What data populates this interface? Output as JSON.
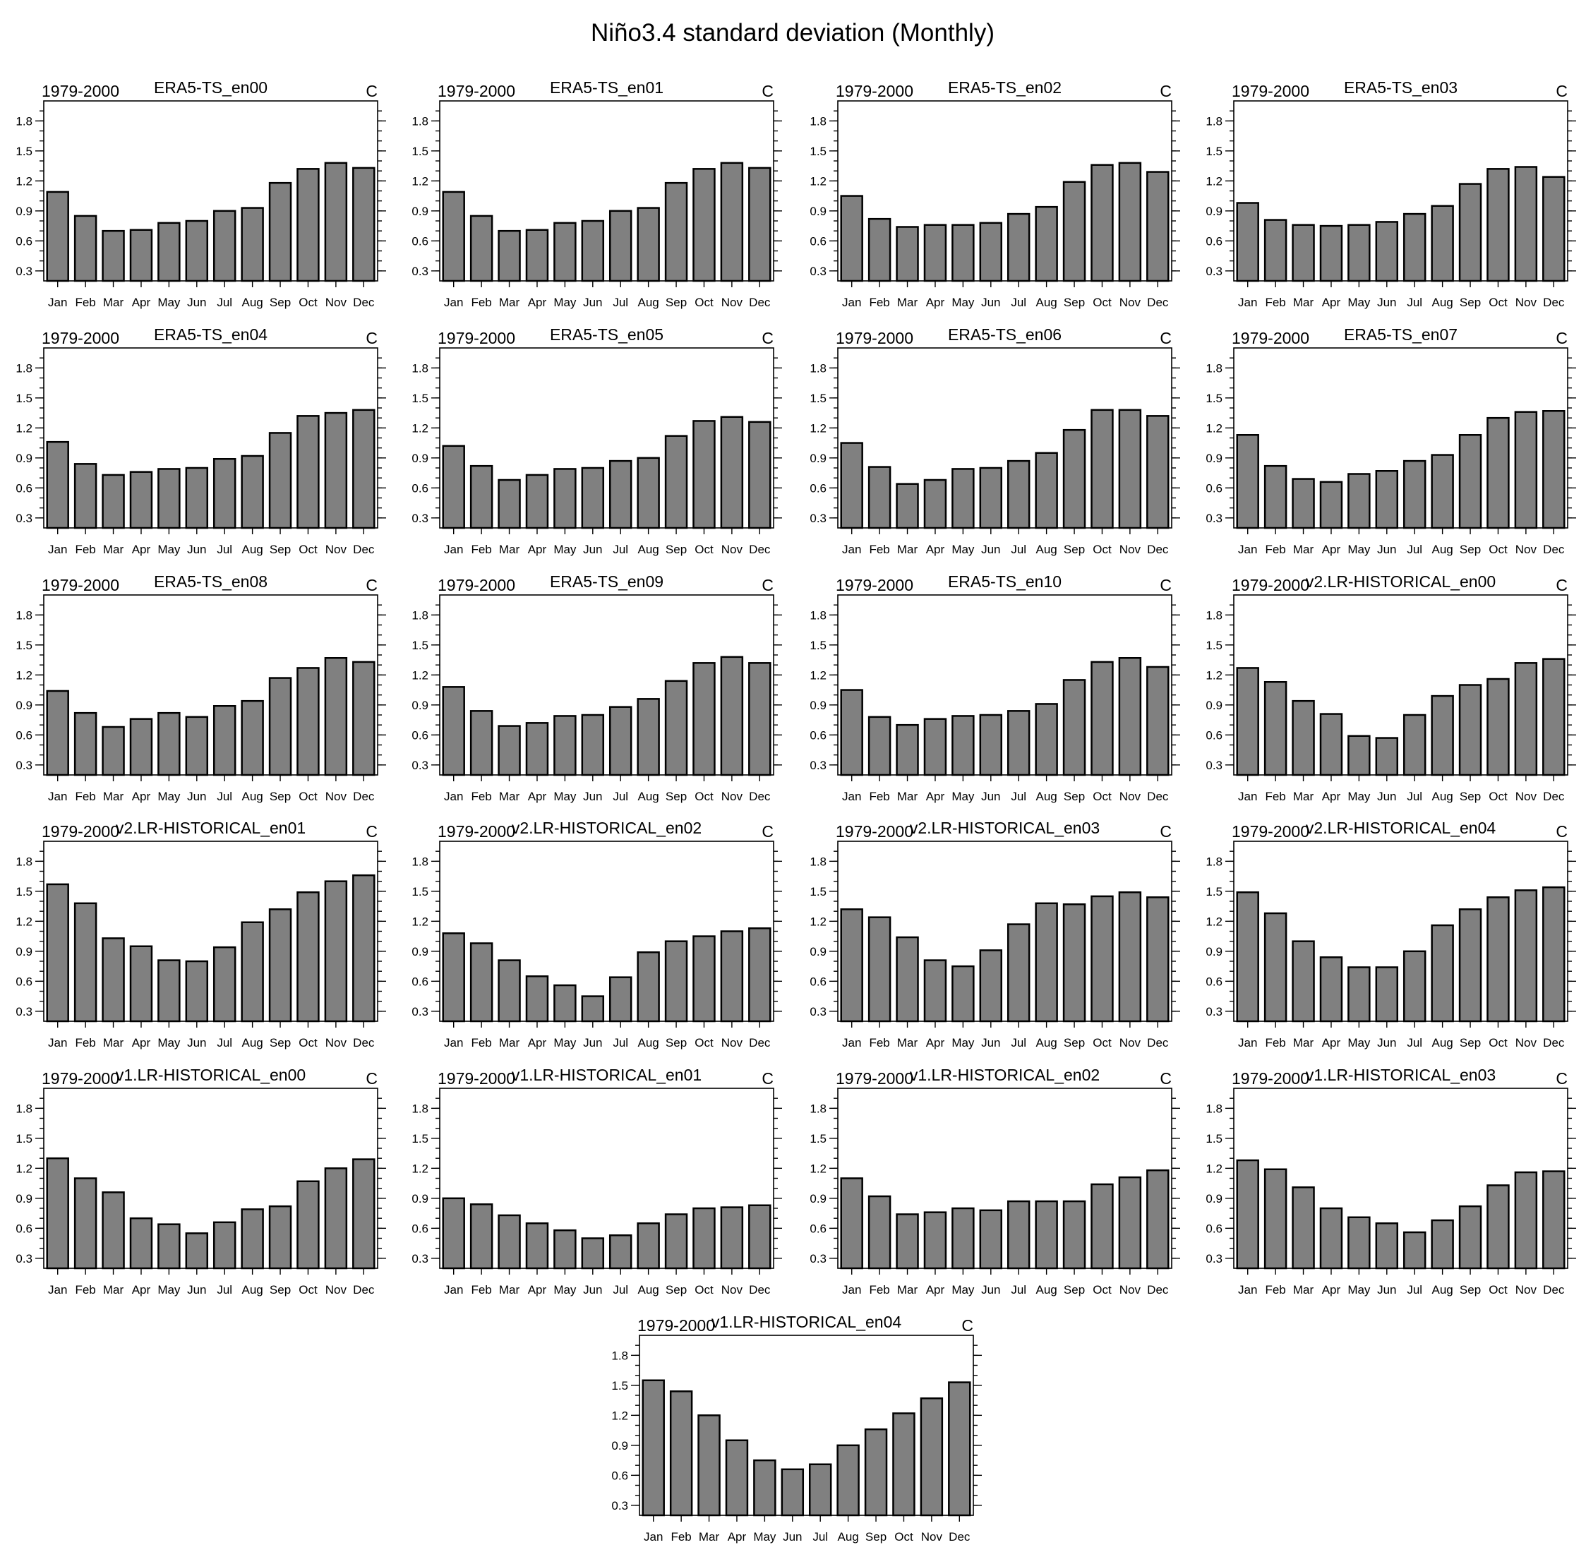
{
  "main_title": "Niño3.4 standard deviation (Monthly)",
  "chart_data": [
    {
      "type": "bar",
      "title": "ERA5-TS_en00",
      "left_label": "1979-2000",
      "right_label": "C",
      "categories": [
        "Jan",
        "Feb",
        "Mar",
        "Apr",
        "May",
        "Jun",
        "Jul",
        "Aug",
        "Sep",
        "Oct",
        "Nov",
        "Dec"
      ],
      "values": [
        1.09,
        0.85,
        0.7,
        0.71,
        0.78,
        0.8,
        0.9,
        0.93,
        1.18,
        1.32,
        1.38,
        1.33
      ],
      "ylim": [
        0.2,
        2.0
      ],
      "yticks": [
        "0.3",
        "0.6",
        "0.9",
        "1.2",
        "1.5",
        "1.8"
      ]
    },
    {
      "type": "bar",
      "title": "ERA5-TS_en01",
      "left_label": "1979-2000",
      "right_label": "C",
      "categories": [
        "Jan",
        "Feb",
        "Mar",
        "Apr",
        "May",
        "Jun",
        "Jul",
        "Aug",
        "Sep",
        "Oct",
        "Nov",
        "Dec"
      ],
      "values": [
        1.09,
        0.85,
        0.7,
        0.71,
        0.78,
        0.8,
        0.9,
        0.93,
        1.18,
        1.32,
        1.38,
        1.33
      ],
      "ylim": [
        0.2,
        2.0
      ],
      "yticks": [
        "0.3",
        "0.6",
        "0.9",
        "1.2",
        "1.5",
        "1.8"
      ]
    },
    {
      "type": "bar",
      "title": "ERA5-TS_en02",
      "left_label": "1979-2000",
      "right_label": "C",
      "categories": [
        "Jan",
        "Feb",
        "Mar",
        "Apr",
        "May",
        "Jun",
        "Jul",
        "Aug",
        "Sep",
        "Oct",
        "Nov",
        "Dec"
      ],
      "values": [
        1.05,
        0.82,
        0.74,
        0.76,
        0.76,
        0.78,
        0.87,
        0.94,
        1.19,
        1.36,
        1.38,
        1.29
      ],
      "ylim": [
        0.2,
        2.0
      ],
      "yticks": [
        "0.3",
        "0.6",
        "0.9",
        "1.2",
        "1.5",
        "1.8"
      ]
    },
    {
      "type": "bar",
      "title": "ERA5-TS_en03",
      "left_label": "1979-2000",
      "right_label": "C",
      "categories": [
        "Jan",
        "Feb",
        "Mar",
        "Apr",
        "May",
        "Jun",
        "Jul",
        "Aug",
        "Sep",
        "Oct",
        "Nov",
        "Dec"
      ],
      "values": [
        0.98,
        0.81,
        0.76,
        0.75,
        0.76,
        0.79,
        0.87,
        0.95,
        1.17,
        1.32,
        1.34,
        1.24
      ],
      "ylim": [
        0.2,
        2.0
      ],
      "yticks": [
        "0.3",
        "0.6",
        "0.9",
        "1.2",
        "1.5",
        "1.8"
      ]
    },
    {
      "type": "bar",
      "title": "ERA5-TS_en04",
      "left_label": "1979-2000",
      "right_label": "C",
      "categories": [
        "Jan",
        "Feb",
        "Mar",
        "Apr",
        "May",
        "Jun",
        "Jul",
        "Aug",
        "Sep",
        "Oct",
        "Nov",
        "Dec"
      ],
      "values": [
        1.06,
        0.84,
        0.73,
        0.76,
        0.79,
        0.8,
        0.89,
        0.92,
        1.15,
        1.32,
        1.35,
        1.38
      ],
      "ylim": [
        0.2,
        2.0
      ],
      "yticks": [
        "0.3",
        "0.6",
        "0.9",
        "1.2",
        "1.5",
        "1.8"
      ]
    },
    {
      "type": "bar",
      "title": "ERA5-TS_en05",
      "left_label": "1979-2000",
      "right_label": "C",
      "categories": [
        "Jan",
        "Feb",
        "Mar",
        "Apr",
        "May",
        "Jun",
        "Jul",
        "Aug",
        "Sep",
        "Oct",
        "Nov",
        "Dec"
      ],
      "values": [
        1.02,
        0.82,
        0.68,
        0.73,
        0.79,
        0.8,
        0.87,
        0.9,
        1.12,
        1.27,
        1.31,
        1.26
      ],
      "ylim": [
        0.2,
        2.0
      ],
      "yticks": [
        "0.3",
        "0.6",
        "0.9",
        "1.2",
        "1.5",
        "1.8"
      ]
    },
    {
      "type": "bar",
      "title": "ERA5-TS_en06",
      "left_label": "1979-2000",
      "right_label": "C",
      "categories": [
        "Jan",
        "Feb",
        "Mar",
        "Apr",
        "May",
        "Jun",
        "Jul",
        "Aug",
        "Sep",
        "Oct",
        "Nov",
        "Dec"
      ],
      "values": [
        1.05,
        0.81,
        0.64,
        0.68,
        0.79,
        0.8,
        0.87,
        0.95,
        1.18,
        1.38,
        1.38,
        1.32
      ],
      "ylim": [
        0.2,
        2.0
      ],
      "yticks": [
        "0.3",
        "0.6",
        "0.9",
        "1.2",
        "1.5",
        "1.8"
      ]
    },
    {
      "type": "bar",
      "title": "ERA5-TS_en07",
      "left_label": "1979-2000",
      "right_label": "C",
      "categories": [
        "Jan",
        "Feb",
        "Mar",
        "Apr",
        "May",
        "Jun",
        "Jul",
        "Aug",
        "Sep",
        "Oct",
        "Nov",
        "Dec"
      ],
      "values": [
        1.13,
        0.82,
        0.69,
        0.66,
        0.74,
        0.77,
        0.87,
        0.93,
        1.13,
        1.3,
        1.36,
        1.37
      ],
      "ylim": [
        0.2,
        2.0
      ],
      "yticks": [
        "0.3",
        "0.6",
        "0.9",
        "1.2",
        "1.5",
        "1.8"
      ]
    },
    {
      "type": "bar",
      "title": "ERA5-TS_en08",
      "left_label": "1979-2000",
      "right_label": "C",
      "categories": [
        "Jan",
        "Feb",
        "Mar",
        "Apr",
        "May",
        "Jun",
        "Jul",
        "Aug",
        "Sep",
        "Oct",
        "Nov",
        "Dec"
      ],
      "values": [
        1.04,
        0.82,
        0.68,
        0.76,
        0.82,
        0.78,
        0.89,
        0.94,
        1.17,
        1.27,
        1.37,
        1.33
      ],
      "ylim": [
        0.2,
        2.0
      ],
      "yticks": [
        "0.3",
        "0.6",
        "0.9",
        "1.2",
        "1.5",
        "1.8"
      ]
    },
    {
      "type": "bar",
      "title": "ERA5-TS_en09",
      "left_label": "1979-2000",
      "right_label": "C",
      "categories": [
        "Jan",
        "Feb",
        "Mar",
        "Apr",
        "May",
        "Jun",
        "Jul",
        "Aug",
        "Sep",
        "Oct",
        "Nov",
        "Dec"
      ],
      "values": [
        1.08,
        0.84,
        0.69,
        0.72,
        0.79,
        0.8,
        0.88,
        0.96,
        1.14,
        1.32,
        1.38,
        1.32
      ],
      "ylim": [
        0.2,
        2.0
      ],
      "yticks": [
        "0.3",
        "0.6",
        "0.9",
        "1.2",
        "1.5",
        "1.8"
      ]
    },
    {
      "type": "bar",
      "title": "ERA5-TS_en10",
      "left_label": "1979-2000",
      "right_label": "C",
      "categories": [
        "Jan",
        "Feb",
        "Mar",
        "Apr",
        "May",
        "Jun",
        "Jul",
        "Aug",
        "Sep",
        "Oct",
        "Nov",
        "Dec"
      ],
      "values": [
        1.05,
        0.78,
        0.7,
        0.76,
        0.79,
        0.8,
        0.84,
        0.91,
        1.15,
        1.33,
        1.37,
        1.28
      ],
      "ylim": [
        0.2,
        2.0
      ],
      "yticks": [
        "0.3",
        "0.6",
        "0.9",
        "1.2",
        "1.5",
        "1.8"
      ]
    },
    {
      "type": "bar",
      "title": "v2.LR-HISTORICAL_en00",
      "left_label": "1979-2000",
      "right_label": "C",
      "categories": [
        "Jan",
        "Feb",
        "Mar",
        "Apr",
        "May",
        "Jun",
        "Jul",
        "Aug",
        "Sep",
        "Oct",
        "Nov",
        "Dec"
      ],
      "values": [
        1.27,
        1.13,
        0.94,
        0.81,
        0.59,
        0.57,
        0.8,
        0.99,
        1.1,
        1.16,
        1.32,
        1.36
      ],
      "ylim": [
        0.2,
        2.0
      ],
      "yticks": [
        "0.3",
        "0.6",
        "0.9",
        "1.2",
        "1.5",
        "1.8"
      ]
    },
    {
      "type": "bar",
      "title": "v2.LR-HISTORICAL_en01",
      "left_label": "1979-2000",
      "right_label": "C",
      "categories": [
        "Jan",
        "Feb",
        "Mar",
        "Apr",
        "May",
        "Jun",
        "Jul",
        "Aug",
        "Sep",
        "Oct",
        "Nov",
        "Dec"
      ],
      "values": [
        1.57,
        1.38,
        1.03,
        0.95,
        0.81,
        0.8,
        0.94,
        1.19,
        1.32,
        1.49,
        1.6,
        1.66
      ],
      "ylim": [
        0.2,
        2.0
      ],
      "yticks": [
        "0.3",
        "0.6",
        "0.9",
        "1.2",
        "1.5",
        "1.8"
      ]
    },
    {
      "type": "bar",
      "title": "v2.LR-HISTORICAL_en02",
      "left_label": "1979-2000",
      "right_label": "C",
      "categories": [
        "Jan",
        "Feb",
        "Mar",
        "Apr",
        "May",
        "Jun",
        "Jul",
        "Aug",
        "Sep",
        "Oct",
        "Nov",
        "Dec"
      ],
      "values": [
        1.08,
        0.98,
        0.81,
        0.65,
        0.56,
        0.45,
        0.64,
        0.89,
        1.0,
        1.05,
        1.1,
        1.13
      ],
      "ylim": [
        0.2,
        2.0
      ],
      "yticks": [
        "0.3",
        "0.6",
        "0.9",
        "1.2",
        "1.5",
        "1.8"
      ]
    },
    {
      "type": "bar",
      "title": "v2.LR-HISTORICAL_en03",
      "left_label": "1979-2000",
      "right_label": "C",
      "categories": [
        "Jan",
        "Feb",
        "Mar",
        "Apr",
        "May",
        "Jun",
        "Jul",
        "Aug",
        "Sep",
        "Oct",
        "Nov",
        "Dec"
      ],
      "values": [
        1.32,
        1.24,
        1.04,
        0.81,
        0.75,
        0.91,
        1.17,
        1.38,
        1.37,
        1.45,
        1.49,
        1.44
      ],
      "ylim": [
        0.2,
        2.0
      ],
      "yticks": [
        "0.3",
        "0.6",
        "0.9",
        "1.2",
        "1.5",
        "1.8"
      ]
    },
    {
      "type": "bar",
      "title": "v2.LR-HISTORICAL_en04",
      "left_label": "1979-2000",
      "right_label": "C",
      "categories": [
        "Jan",
        "Feb",
        "Mar",
        "Apr",
        "May",
        "Jun",
        "Jul",
        "Aug",
        "Sep",
        "Oct",
        "Nov",
        "Dec"
      ],
      "values": [
        1.49,
        1.28,
        1.0,
        0.84,
        0.74,
        0.74,
        0.9,
        1.16,
        1.32,
        1.44,
        1.51,
        1.54
      ],
      "ylim": [
        0.2,
        2.0
      ],
      "yticks": [
        "0.3",
        "0.6",
        "0.9",
        "1.2",
        "1.5",
        "1.8"
      ]
    },
    {
      "type": "bar",
      "title": "v1.LR-HISTORICAL_en00",
      "left_label": "1979-2000",
      "right_label": "C",
      "categories": [
        "Jan",
        "Feb",
        "Mar",
        "Apr",
        "May",
        "Jun",
        "Jul",
        "Aug",
        "Sep",
        "Oct",
        "Nov",
        "Dec"
      ],
      "values": [
        1.3,
        1.1,
        0.96,
        0.7,
        0.64,
        0.55,
        0.66,
        0.79,
        0.82,
        1.07,
        1.2,
        1.29
      ],
      "ylim": [
        0.2,
        2.0
      ],
      "yticks": [
        "0.3",
        "0.6",
        "0.9",
        "1.2",
        "1.5",
        "1.8"
      ]
    },
    {
      "type": "bar",
      "title": "v1.LR-HISTORICAL_en01",
      "left_label": "1979-2000",
      "right_label": "C",
      "categories": [
        "Jan",
        "Feb",
        "Mar",
        "Apr",
        "May",
        "Jun",
        "Jul",
        "Aug",
        "Sep",
        "Oct",
        "Nov",
        "Dec"
      ],
      "values": [
        0.9,
        0.84,
        0.73,
        0.65,
        0.58,
        0.5,
        0.53,
        0.65,
        0.74,
        0.8,
        0.81,
        0.83
      ],
      "ylim": [
        0.2,
        2.0
      ],
      "yticks": [
        "0.3",
        "0.6",
        "0.9",
        "1.2",
        "1.5",
        "1.8"
      ]
    },
    {
      "type": "bar",
      "title": "v1.LR-HISTORICAL_en02",
      "left_label": "1979-2000",
      "right_label": "C",
      "categories": [
        "Jan",
        "Feb",
        "Mar",
        "Apr",
        "May",
        "Jun",
        "Jul",
        "Aug",
        "Sep",
        "Oct",
        "Nov",
        "Dec"
      ],
      "values": [
        1.1,
        0.92,
        0.74,
        0.76,
        0.8,
        0.78,
        0.87,
        0.87,
        0.87,
        1.04,
        1.11,
        1.18
      ],
      "ylim": [
        0.2,
        2.0
      ],
      "yticks": [
        "0.3",
        "0.6",
        "0.9",
        "1.2",
        "1.5",
        "1.8"
      ]
    },
    {
      "type": "bar",
      "title": "v1.LR-HISTORICAL_en03",
      "left_label": "1979-2000",
      "right_label": "C",
      "categories": [
        "Jan",
        "Feb",
        "Mar",
        "Apr",
        "May",
        "Jun",
        "Jul",
        "Aug",
        "Sep",
        "Oct",
        "Nov",
        "Dec"
      ],
      "values": [
        1.28,
        1.19,
        1.01,
        0.8,
        0.71,
        0.65,
        0.56,
        0.68,
        0.82,
        1.03,
        1.16,
        1.17
      ],
      "ylim": [
        0.2,
        2.0
      ],
      "yticks": [
        "0.3",
        "0.6",
        "0.9",
        "1.2",
        "1.5",
        "1.8"
      ]
    },
    {
      "type": "bar",
      "title": "v1.LR-HISTORICAL_en04",
      "left_label": "1979-2000",
      "right_label": "C",
      "categories": [
        "Jan",
        "Feb",
        "Mar",
        "Apr",
        "May",
        "Jun",
        "Jul",
        "Aug",
        "Sep",
        "Oct",
        "Nov",
        "Dec"
      ],
      "values": [
        1.55,
        1.44,
        1.2,
        0.95,
        0.75,
        0.66,
        0.71,
        0.9,
        1.06,
        1.22,
        1.37,
        1.53
      ],
      "ylim": [
        0.2,
        2.0
      ],
      "yticks": [
        "0.3",
        "0.6",
        "0.9",
        "1.2",
        "1.5",
        "1.8"
      ]
    }
  ]
}
